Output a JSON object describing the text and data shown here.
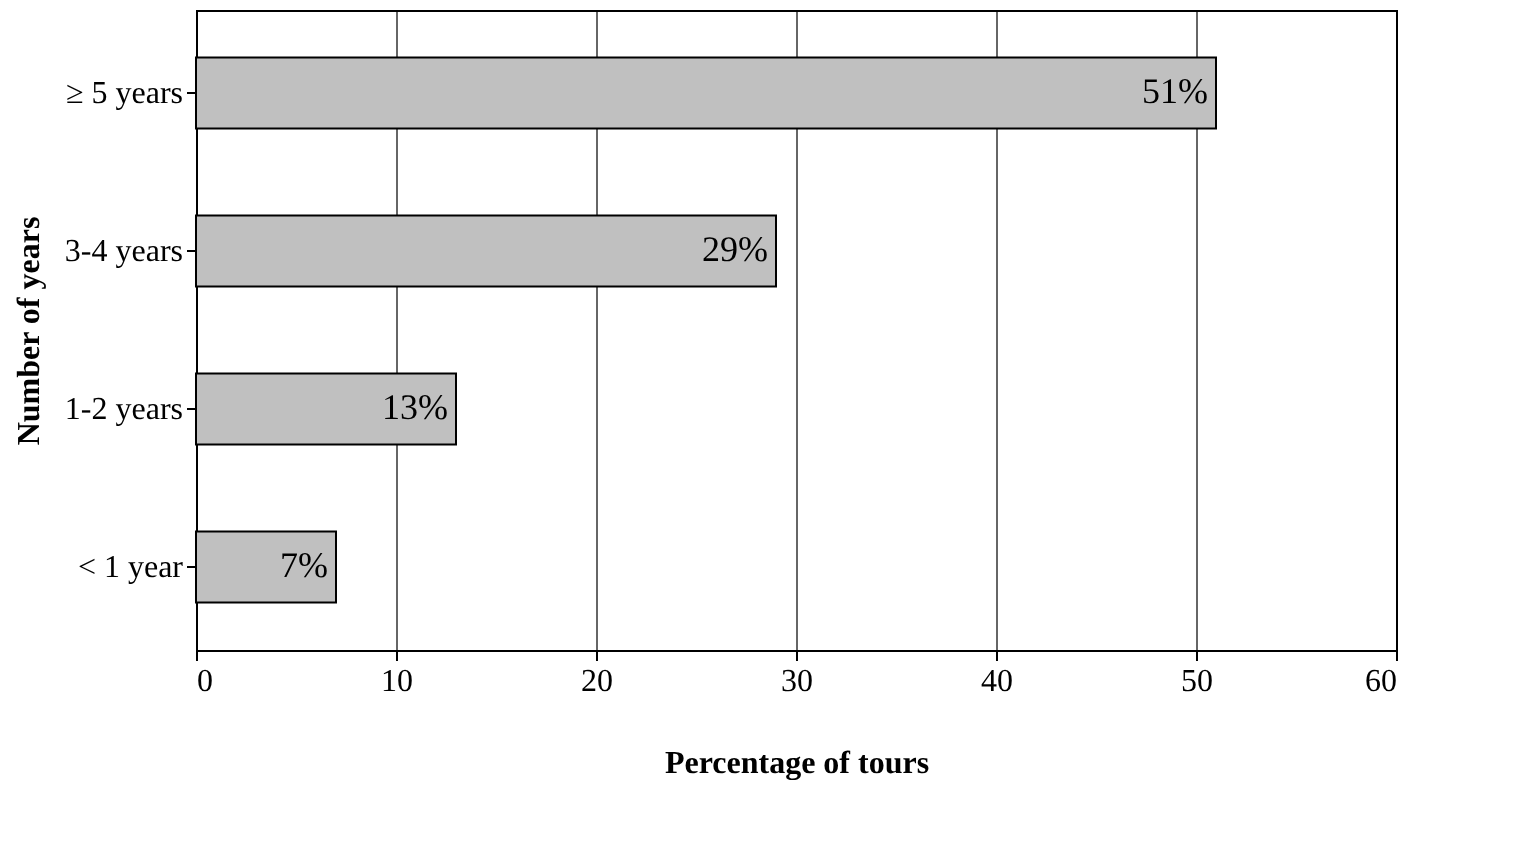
{
  "chart_data": {
    "type": "bar",
    "orientation": "horizontal",
    "xlabel": "Percentage of tours",
    "ylabel": "Number of years",
    "categories": [
      "≥ 5 years",
      "3-4 years",
      "1-2 years",
      "< 1 year"
    ],
    "values": [
      51,
      29,
      13,
      7
    ],
    "value_labels": [
      "51%",
      "29%",
      "13%",
      "7%"
    ],
    "color": "#c0c0c0",
    "xlim": [
      0,
      60
    ],
    "xticks": [
      0,
      10,
      20,
      30,
      40,
      50,
      60
    ],
    "grid": "x"
  }
}
